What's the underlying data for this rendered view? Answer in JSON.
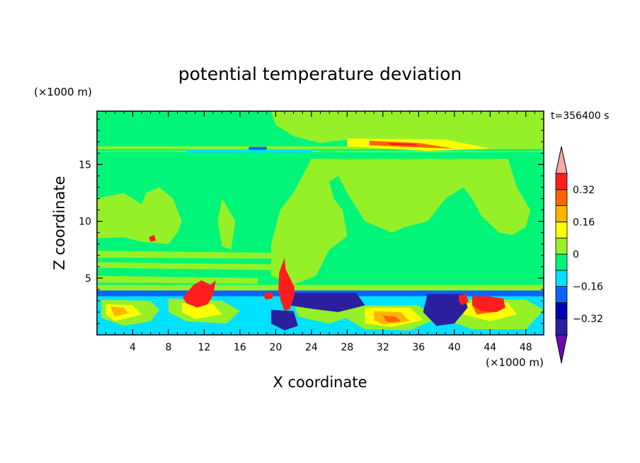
{
  "chart_data": {
    "type": "heatmap",
    "title": "potential temperature deviation",
    "xlabel": "X coordinate",
    "ylabel": "Z coordinate",
    "x_unit": "(×1000 m)",
    "y_unit": "(×1000 m)",
    "time_label": "t=356400 s",
    "xlim": [
      0,
      50
    ],
    "ylim": [
      0,
      19.7
    ],
    "x_ticks": [
      "4",
      "8",
      "12",
      "16",
      "20",
      "24",
      "28",
      "32",
      "36",
      "40",
      "44",
      "48"
    ],
    "y_ticks": [
      "5",
      "10",
      "15"
    ],
    "colorbar": {
      "labels": [
        "0.32",
        "0.16",
        "0",
        "−0.16",
        "−0.32"
      ],
      "levels": [
        -0.4,
        -0.32,
        -0.24,
        -0.16,
        -0.08,
        0,
        0.08,
        0.16,
        0.24,
        0.32,
        0.4
      ],
      "colors": [
        "#6a0dad",
        "#2b1fa0",
        "#0000b4",
        "#0a64ff",
        "#00e1ff",
        "#00f578",
        "#96f028",
        "#ffff00",
        "#ffb400",
        "#ff6400",
        "#ff1e1e",
        "#f7a8a8"
      ]
    },
    "regions": [
      {
        "level": 0.04,
        "polygon": [
          [
            19.5,
            19.7
          ],
          [
            50,
            19.7
          ],
          [
            50,
            16.3
          ],
          [
            38,
            16.5
          ],
          [
            34,
            17.2
          ],
          [
            28,
            17.2
          ],
          [
            25,
            16.9
          ],
          [
            22,
            17.5
          ],
          [
            20,
            18.5
          ],
          [
            19.5,
            19.7
          ]
        ]
      },
      {
        "level": 0.04,
        "polygon": [
          [
            0,
            16.6
          ],
          [
            50,
            16.6
          ],
          [
            50,
            16.1
          ],
          [
            0,
            16.1
          ]
        ]
      },
      {
        "level": -0.04,
        "polygon": [
          [
            0,
            16.35
          ],
          [
            50,
            16.35
          ],
          [
            50,
            16.2
          ],
          [
            0,
            16.2
          ]
        ]
      },
      {
        "level": -0.12,
        "polygon": [
          [
            10,
            16.3
          ],
          [
            24,
            16.3
          ],
          [
            24,
            16.05
          ],
          [
            10,
            16.05
          ]
        ]
      },
      {
        "level": -0.2,
        "polygon": [
          [
            17,
            16.55
          ],
          [
            19,
            16.55
          ],
          [
            19,
            16.3
          ],
          [
            17,
            16.3
          ]
        ]
      },
      {
        "level": 0.12,
        "polygon": [
          [
            28,
            17.3
          ],
          [
            39,
            17.2
          ],
          [
            44,
            16.4
          ],
          [
            37,
            16.2
          ],
          [
            28,
            16.6
          ],
          [
            28,
            17.3
          ]
        ]
      },
      {
        "level": 0.28,
        "polygon": [
          [
            30.5,
            17.1
          ],
          [
            36,
            16.9
          ],
          [
            40,
            16.4
          ],
          [
            36,
            16.5
          ],
          [
            30.5,
            16.7
          ],
          [
            30.5,
            17.1
          ]
        ]
      },
      {
        "level": 0.36,
        "polygon": [
          [
            32.5,
            16.9
          ],
          [
            35.5,
            16.85
          ],
          [
            36,
            16.65
          ],
          [
            33,
            16.7
          ],
          [
            32.5,
            16.9
          ]
        ]
      },
      {
        "level": 0.04,
        "polygon": [
          [
            24,
            15.5
          ],
          [
            32,
            15.5
          ],
          [
            40,
            15.5
          ],
          [
            46,
            15.5
          ],
          [
            47,
            13
          ],
          [
            48.5,
            11
          ],
          [
            48,
            9.5
          ],
          [
            46.5,
            8.8
          ],
          [
            45,
            9
          ],
          [
            43,
            10.5
          ],
          [
            42,
            12
          ],
          [
            41,
            13
          ],
          [
            39,
            12
          ],
          [
            37,
            10
          ],
          [
            34.5,
            9.5
          ],
          [
            33,
            9
          ],
          [
            30,
            10
          ],
          [
            28,
            12.5
          ],
          [
            27,
            14
          ],
          [
            26,
            13.5
          ],
          [
            26.5,
            12
          ],
          [
            27.5,
            11
          ],
          [
            28,
            8.7
          ],
          [
            26,
            7.5
          ],
          [
            24.5,
            5.2
          ],
          [
            22,
            4.4
          ],
          [
            19.5,
            5.2
          ],
          [
            19.5,
            8
          ],
          [
            20.5,
            11
          ],
          [
            22,
            12.5
          ],
          [
            23,
            14
          ],
          [
            24,
            15.5
          ]
        ]
      },
      {
        "level": 0.04,
        "polygon": [
          [
            0,
            12
          ],
          [
            3,
            12.5
          ],
          [
            5,
            11.5
          ],
          [
            5.5,
            12.5
          ],
          [
            7,
            13
          ],
          [
            8.5,
            12
          ],
          [
            9.5,
            10
          ],
          [
            9,
            9
          ],
          [
            8,
            8
          ],
          [
            5,
            8.2
          ],
          [
            3,
            8.6
          ],
          [
            0,
            8.5
          ],
          [
            0,
            12
          ]
        ]
      },
      {
        "level": 0.04,
        "polygon": [
          [
            0,
            7.4
          ],
          [
            22,
            7.2
          ],
          [
            22,
            6.7
          ],
          [
            0,
            6.8
          ]
        ]
      },
      {
        "level": 0.04,
        "polygon": [
          [
            0,
            6.4
          ],
          [
            20,
            6.2
          ],
          [
            20,
            5.7
          ],
          [
            0,
            5.9
          ]
        ]
      },
      {
        "level": 0.04,
        "polygon": [
          [
            0,
            5.2
          ],
          [
            18,
            5.0
          ],
          [
            18,
            4.5
          ],
          [
            0,
            4.6
          ]
        ]
      },
      {
        "level": 0.04,
        "polygon": [
          [
            14,
            12
          ],
          [
            15.5,
            10
          ],
          [
            15,
            7.5
          ],
          [
            14,
            7.8
          ],
          [
            13.5,
            10
          ],
          [
            14,
            12
          ]
        ]
      },
      {
        "level": 0.04,
        "polygon": [
          [
            0,
            4.4
          ],
          [
            50,
            4.4
          ],
          [
            50,
            3.9
          ],
          [
            0,
            3.9
          ]
        ]
      },
      {
        "level": -0.24,
        "polygon": [
          [
            0,
            3.9
          ],
          [
            50,
            3.9
          ],
          [
            50,
            3.4
          ],
          [
            0,
            3.4
          ]
        ]
      },
      {
        "level": -0.12,
        "polygon": [
          [
            0,
            3.4
          ],
          [
            50,
            3.4
          ],
          [
            50,
            0
          ],
          [
            0,
            0
          ]
        ]
      },
      {
        "level": 0.04,
        "polygon": [
          [
            0.5,
            3.1
          ],
          [
            6,
            3.0
          ],
          [
            7,
            2.2
          ],
          [
            6,
            1.2
          ],
          [
            3,
            0.8
          ],
          [
            0.5,
            1.5
          ]
        ]
      },
      {
        "level": 0.04,
        "polygon": [
          [
            8,
            3.2
          ],
          [
            14,
            3.0
          ],
          [
            16,
            2.1
          ],
          [
            14.5,
            1.0
          ],
          [
            10,
            1.2
          ],
          [
            8,
            2.0
          ]
        ]
      },
      {
        "level": 0.04,
        "polygon": [
          [
            22,
            3.0
          ],
          [
            28,
            3.0
          ],
          [
            29,
            1.8
          ],
          [
            26,
            1.0
          ],
          [
            22.5,
            1.6
          ]
        ]
      },
      {
        "level": 0.04,
        "polygon": [
          [
            28,
            2.6
          ],
          [
            36,
            2.6
          ],
          [
            38,
            1.4
          ],
          [
            35,
            0.4
          ],
          [
            30,
            0.5
          ],
          [
            28,
            1.4
          ]
        ]
      },
      {
        "level": 0.04,
        "polygon": [
          [
            38,
            3.1
          ],
          [
            48,
            3.1
          ],
          [
            50,
            2.2
          ],
          [
            48,
            0.5
          ],
          [
            42,
            0.5
          ],
          [
            38,
            1.6
          ]
        ]
      },
      {
        "level": 0.12,
        "polygon": [
          [
            1,
            2.7
          ],
          [
            4,
            2.6
          ],
          [
            5,
            1.8
          ],
          [
            2,
            1.2
          ],
          [
            1,
            1.8
          ]
        ]
      },
      {
        "level": 0.12,
        "polygon": [
          [
            9.5,
            2.8
          ],
          [
            13,
            2.7
          ],
          [
            14,
            1.8
          ],
          [
            11,
            1.4
          ],
          [
            9.5,
            2.0
          ]
        ]
      },
      {
        "level": 0.12,
        "polygon": [
          [
            30,
            2.4
          ],
          [
            35,
            2.4
          ],
          [
            36.5,
            1.3
          ],
          [
            33,
            0.7
          ],
          [
            30,
            1.0
          ]
        ]
      },
      {
        "level": 0.12,
        "polygon": [
          [
            41,
            2.8
          ],
          [
            46,
            2.8
          ],
          [
            47,
            1.8
          ],
          [
            44,
            1.2
          ],
          [
            41,
            1.8
          ]
        ]
      },
      {
        "level": 0.2,
        "polygon": [
          [
            31,
            2.1
          ],
          [
            34,
            2.0
          ],
          [
            35,
            1.2
          ],
          [
            32,
            0.9
          ],
          [
            31,
            1.3
          ]
        ]
      },
      {
        "level": 0.28,
        "polygon": [
          [
            32,
            1.7
          ],
          [
            33.5,
            1.6
          ],
          [
            34,
            1.2
          ],
          [
            32.5,
            1.1
          ]
        ]
      },
      {
        "level": 0.2,
        "polygon": [
          [
            1.5,
            2.5
          ],
          [
            3,
            2.4
          ],
          [
            3.5,
            1.9
          ],
          [
            2,
            1.6
          ]
        ]
      },
      {
        "level": 0.28,
        "polygon": [
          [
            42,
            2.6
          ],
          [
            44,
            2.6
          ],
          [
            44.5,
            2.0
          ],
          [
            42.5,
            1.8
          ]
        ]
      },
      {
        "level": -0.36,
        "polygon": [
          [
            21.5,
            3.7
          ],
          [
            29,
            3.7
          ],
          [
            30,
            2.6
          ],
          [
            27,
            2.0
          ],
          [
            24,
            2.3
          ],
          [
            21.5,
            2.6
          ]
        ]
      },
      {
        "level": -0.36,
        "polygon": [
          [
            37,
            3.6
          ],
          [
            41,
            3.6
          ],
          [
            41.5,
            2.4
          ],
          [
            40,
            1.0
          ],
          [
            38,
            0.8
          ],
          [
            36.5,
            2.0
          ]
        ]
      },
      {
        "level": -0.36,
        "polygon": [
          [
            19.5,
            2.2
          ],
          [
            22,
            2.1
          ],
          [
            22.5,
            0.8
          ],
          [
            21,
            0.4
          ],
          [
            19.5,
            1.0
          ]
        ]
      },
      {
        "level": 0.36,
        "polygon": [
          [
            9.6,
            3.3
          ],
          [
            10.8,
            4.4
          ],
          [
            11.7,
            4.8
          ],
          [
            12.7,
            4.4
          ],
          [
            13.3,
            4.8
          ],
          [
            13,
            3.5
          ],
          [
            12.4,
            2.7
          ],
          [
            11.2,
            2.4
          ],
          [
            10,
            2.8
          ],
          [
            9.6,
            3.3
          ]
        ]
      },
      {
        "level": 0.36,
        "polygon": [
          [
            20.3,
            3.9
          ],
          [
            20.4,
            5.5
          ],
          [
            21,
            6.8
          ],
          [
            21.1,
            5.8
          ],
          [
            21.6,
            5.0
          ],
          [
            22.1,
            4.2
          ],
          [
            22.1,
            3.5
          ],
          [
            21.6,
            2.3
          ],
          [
            21,
            2.1
          ],
          [
            20.6,
            2.9
          ],
          [
            20.3,
            3.9
          ]
        ]
      },
      {
        "level": 0.36,
        "polygon": [
          [
            42,
            3.4
          ],
          [
            43.8,
            3.4
          ],
          [
            45.5,
            3.2
          ],
          [
            45.7,
            2.4
          ],
          [
            44.7,
            2.0
          ],
          [
            43,
            2.1
          ],
          [
            42,
            2.6
          ],
          [
            42,
            3.4
          ]
        ]
      },
      {
        "level": 0.36,
        "polygon": [
          [
            40.5,
            3.5
          ],
          [
            41.3,
            3.6
          ],
          [
            41.6,
            2.9
          ],
          [
            40.8,
            2.6
          ],
          [
            40.5,
            3.0
          ]
        ]
      },
      {
        "level": 0.36,
        "polygon": [
          [
            18.6,
            3.5
          ],
          [
            19.2,
            3.8
          ],
          [
            19.8,
            3.6
          ],
          [
            19.6,
            3.2
          ],
          [
            18.9,
            3.1
          ]
        ]
      },
      {
        "level": 0.36,
        "polygon": [
          [
            5.8,
            8.6
          ],
          [
            6.4,
            8.8
          ],
          [
            6.6,
            8.3
          ],
          [
            6.0,
            8.2
          ]
        ]
      }
    ]
  }
}
